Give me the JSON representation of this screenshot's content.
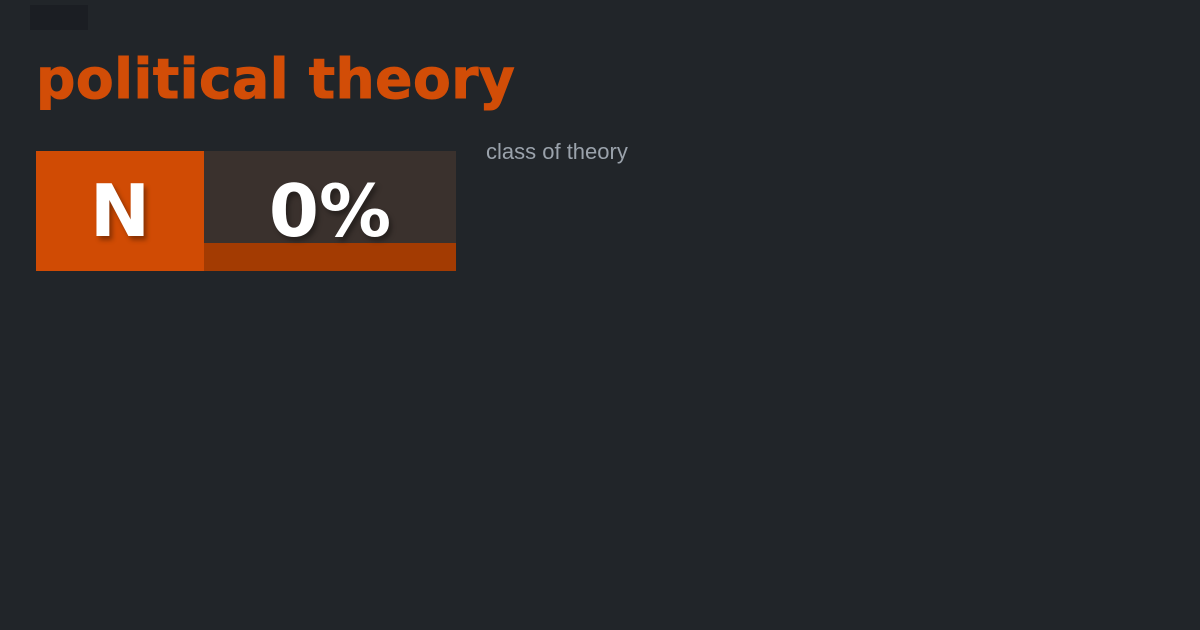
{
  "card": {
    "title": "political theory",
    "subtitle": "class of theory",
    "grade": {
      "letter": "N",
      "percent": "0%",
      "progress_percent": 0
    },
    "colors": {
      "background": "#212529",
      "accent_orange": "#d24d07",
      "grade_letter_bg": "#d04b04",
      "percent_bg": "#3a312d",
      "progress_track": "#a33b02",
      "subtitle_gray": "#9aa2ab",
      "grade_text": "#ffffff"
    }
  }
}
